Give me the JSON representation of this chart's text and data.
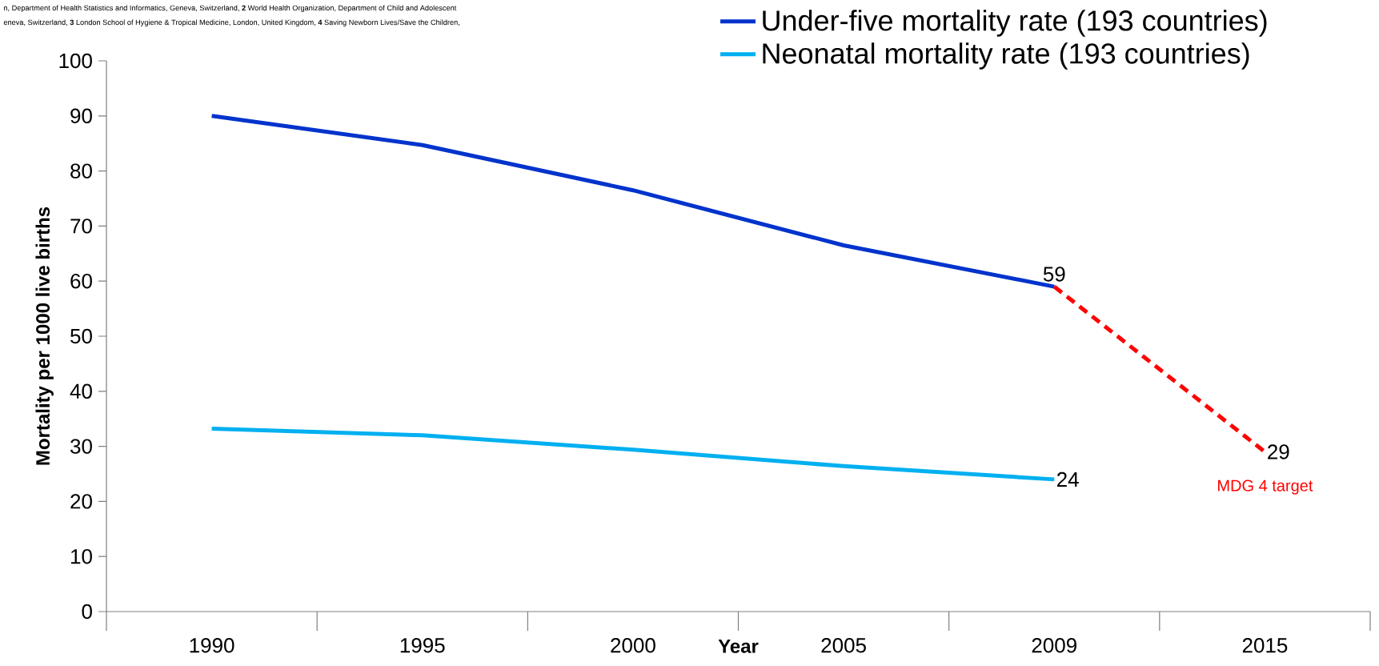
{
  "chart_data": {
    "type": "line",
    "xlabel": "Year",
    "ylabel": "Mortality per 1000 live births",
    "categories": [
      "1990",
      "1995",
      "2000",
      "2005",
      "2009",
      "2015"
    ],
    "series": [
      {
        "name": "Under-five mortality rate (193 countries)",
        "color": "#0033cc",
        "values": [
          90,
          84.7,
          76.5,
          66.5,
          59,
          null
        ],
        "value_labels": [
          null,
          null,
          null,
          null,
          "59",
          null
        ]
      },
      {
        "name": "Neonatal mortality rate (193 countries)",
        "color": "#00b0f0",
        "values": [
          33.2,
          32,
          29.4,
          26.4,
          24,
          null
        ],
        "value_labels": [
          null,
          null,
          null,
          null,
          "24",
          null
        ]
      },
      {
        "color": "#ff0000",
        "line_style": "dashed",
        "values": [
          null,
          null,
          null,
          null,
          59,
          29
        ],
        "value_labels": [
          null,
          null,
          null,
          null,
          null,
          "29"
        ]
      }
    ],
    "ylim": [
      0,
      100
    ],
    "yticks": [
      0,
      10,
      20,
      30,
      40,
      50,
      60,
      70,
      80,
      90,
      100
    ],
    "grid": false,
    "legend": "top right",
    "line_style": "solid",
    "marker": "none",
    "annotations": [
      {
        "text": "MDG 4 target",
        "x": "2015",
        "y": 29
      },
      "n, Department of Health Statistics and Informatics, Geneva, Switzerland, **2** World Health Organization, Department of Child and Adolescent",
      "eneva, Switzerland, **3** London School of Hygiene & Tropical Medicine, London, United Kingdom, **4** Saving Newborn Lives/Save the Children,"
    ]
  }
}
